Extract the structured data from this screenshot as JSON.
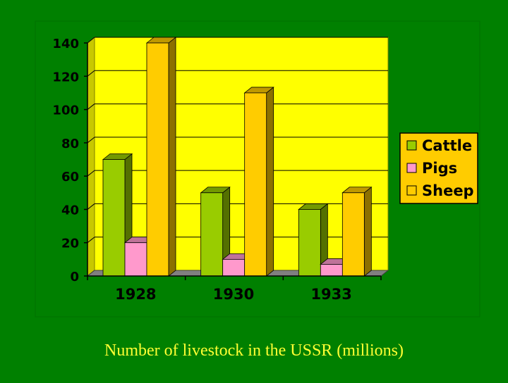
{
  "caption": "Number of livestock in the USSR (millions)",
  "chart_data": {
    "type": "bar",
    "categories": [
      "1928",
      "1930",
      "1933"
    ],
    "series": [
      {
        "name": "Cattle",
        "values": [
          70,
          50,
          40
        ],
        "color": "#99cc00"
      },
      {
        "name": "Pigs",
        "values": [
          20,
          10,
          7
        ],
        "color": "#ff99cc"
      },
      {
        "name": "Sheep",
        "values": [
          140,
          110,
          50
        ],
        "color": "#ffcc00"
      }
    ],
    "ylim": [
      0,
      140
    ],
    "yticks": [
      0,
      20,
      40,
      60,
      80,
      100,
      120,
      140
    ],
    "grid": true,
    "legend": "right",
    "plot_background": "#ffff00",
    "legend_background": "#ffcc00"
  }
}
